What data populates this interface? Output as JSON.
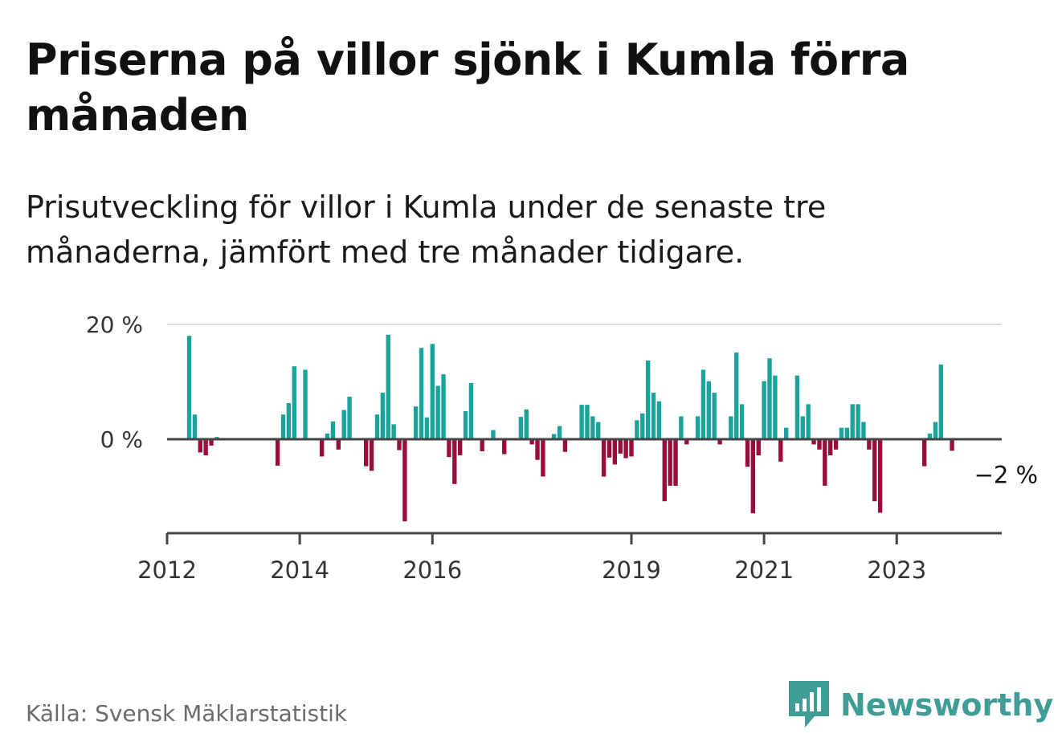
{
  "header": {
    "title": "Priserna på villor sjönk i Kumla förra månaden",
    "subtitle": "Prisutveckling för villor i Kumla under de senaste tre månaderna, jämfört med tre månader tidigare."
  },
  "footer": {
    "source": "Källa: Svensk Mäklarstatistik",
    "brand": "Newsworthy",
    "brand_icon": "bar-chart-badge-icon"
  },
  "colors": {
    "positive": "#1aa398",
    "negative": "#990c3e",
    "axis": "#444444",
    "grid": "#dddddd",
    "brand": "#3f9d95"
  },
  "chart_data": {
    "type": "bar",
    "x_start": "2012-01",
    "x_end": "2024-08",
    "xticks": [
      {
        "label": "2012",
        "date": "2012-01"
      },
      {
        "label": "2014",
        "date": "2014-01"
      },
      {
        "label": "2016",
        "date": "2016-01"
      },
      {
        "label": "2019",
        "date": "2019-01"
      },
      {
        "label": "2021",
        "date": "2021-01"
      },
      {
        "label": "2023",
        "date": "2023-01"
      }
    ],
    "yticks": [
      {
        "value": 0,
        "label": "0 %"
      },
      {
        "value": 20,
        "label": "20 %"
      }
    ],
    "ylim": [
      -16,
      20
    ],
    "grid": true,
    "annotation": {
      "label": "−2 %",
      "date": "2024-03",
      "value": -2
    },
    "series": [
      {
        "points": [
          {
            "date": "2012-05",
            "value": 18
          },
          {
            "date": "2012-06",
            "value": 4.3
          },
          {
            "date": "2012-07",
            "value": -2.3
          },
          {
            "date": "2012-08",
            "value": -2.8
          },
          {
            "date": "2012-09",
            "value": -1.1
          },
          {
            "date": "2012-10",
            "value": 0.4
          },
          {
            "date": "2013-09",
            "value": -4.6
          },
          {
            "date": "2013-10",
            "value": 4.3
          },
          {
            "date": "2013-11",
            "value": 6.3
          },
          {
            "date": "2013-12",
            "value": 12.7
          },
          {
            "date": "2014-02",
            "value": 12.1
          },
          {
            "date": "2014-05",
            "value": -3
          },
          {
            "date": "2014-06",
            "value": 1
          },
          {
            "date": "2014-07",
            "value": 3.1
          },
          {
            "date": "2014-08",
            "value": -1.8
          },
          {
            "date": "2014-09",
            "value": 5.1
          },
          {
            "date": "2014-10",
            "value": 7.4
          },
          {
            "date": "2015-01",
            "value": -4.7
          },
          {
            "date": "2015-02",
            "value": -5.5
          },
          {
            "date": "2015-03",
            "value": 4.3
          },
          {
            "date": "2015-04",
            "value": 8.1
          },
          {
            "date": "2015-05",
            "value": 18.2
          },
          {
            "date": "2015-06",
            "value": 2.6
          },
          {
            "date": "2015-07",
            "value": -1.9
          },
          {
            "date": "2015-08",
            "value": -14.3
          },
          {
            "date": "2015-10",
            "value": 5.7
          },
          {
            "date": "2015-11",
            "value": 15.9
          },
          {
            "date": "2015-12",
            "value": 3.8
          },
          {
            "date": "2016-01",
            "value": 16.6
          },
          {
            "date": "2016-02",
            "value": 9.3
          },
          {
            "date": "2016-03",
            "value": 11.3
          },
          {
            "date": "2016-04",
            "value": -3.1
          },
          {
            "date": "2016-05",
            "value": -7.8
          },
          {
            "date": "2016-06",
            "value": -2.8
          },
          {
            "date": "2016-07",
            "value": 4.9
          },
          {
            "date": "2016-08",
            "value": 9.8
          },
          {
            "date": "2016-10",
            "value": -2.1
          },
          {
            "date": "2016-12",
            "value": 1.6
          },
          {
            "date": "2017-02",
            "value": -2.6
          },
          {
            "date": "2017-05",
            "value": 3.9
          },
          {
            "date": "2017-06",
            "value": 5.2
          },
          {
            "date": "2017-07",
            "value": -0.9
          },
          {
            "date": "2017-08",
            "value": -3.6
          },
          {
            "date": "2017-09",
            "value": -6.5
          },
          {
            "date": "2017-11",
            "value": 0.9
          },
          {
            "date": "2017-12",
            "value": 2.3
          },
          {
            "date": "2018-01",
            "value": -2.2
          },
          {
            "date": "2018-04",
            "value": 6
          },
          {
            "date": "2018-05",
            "value": 6
          },
          {
            "date": "2018-06",
            "value": 4
          },
          {
            "date": "2018-07",
            "value": 3
          },
          {
            "date": "2018-08",
            "value": -6.5
          },
          {
            "date": "2018-09",
            "value": -3.2
          },
          {
            "date": "2018-10",
            "value": -4.4
          },
          {
            "date": "2018-11",
            "value": -2.5
          },
          {
            "date": "2018-12",
            "value": -3.3
          },
          {
            "date": "2019-01",
            "value": -3
          },
          {
            "date": "2019-02",
            "value": 3.3
          },
          {
            "date": "2019-03",
            "value": 4.5
          },
          {
            "date": "2019-04",
            "value": 13.7
          },
          {
            "date": "2019-05",
            "value": 8.1
          },
          {
            "date": "2019-06",
            "value": 6.6
          },
          {
            "date": "2019-07",
            "value": -10.8
          },
          {
            "date": "2019-08",
            "value": -8.1
          },
          {
            "date": "2019-09",
            "value": -8.1
          },
          {
            "date": "2019-10",
            "value": 4
          },
          {
            "date": "2019-11",
            "value": -0.9
          },
          {
            "date": "2020-01",
            "value": 4
          },
          {
            "date": "2020-02",
            "value": 12.1
          },
          {
            "date": "2020-03",
            "value": 10.1
          },
          {
            "date": "2020-04",
            "value": 8.1
          },
          {
            "date": "2020-05",
            "value": -0.9
          },
          {
            "date": "2020-07",
            "value": 4
          },
          {
            "date": "2020-08",
            "value": 15.1
          },
          {
            "date": "2020-09",
            "value": 6.1
          },
          {
            "date": "2020-10",
            "value": -4.8
          },
          {
            "date": "2020-11",
            "value": -12.9
          },
          {
            "date": "2020-12",
            "value": -2.8
          },
          {
            "date": "2021-01",
            "value": 10.1
          },
          {
            "date": "2021-02",
            "value": 14.1
          },
          {
            "date": "2021-03",
            "value": 11.1
          },
          {
            "date": "2021-04",
            "value": -3.9
          },
          {
            "date": "2021-05",
            "value": 2
          },
          {
            "date": "2021-07",
            "value": 11.1
          },
          {
            "date": "2021-08",
            "value": 4
          },
          {
            "date": "2021-09",
            "value": 6.1
          },
          {
            "date": "2021-10",
            "value": -0.9
          },
          {
            "date": "2021-11",
            "value": -1.8
          },
          {
            "date": "2021-12",
            "value": -8.1
          },
          {
            "date": "2022-01",
            "value": -2.8
          },
          {
            "date": "2022-02",
            "value": -1.8
          },
          {
            "date": "2022-03",
            "value": 2
          },
          {
            "date": "2022-04",
            "value": 2
          },
          {
            "date": "2022-05",
            "value": 6.1
          },
          {
            "date": "2022-06",
            "value": 6.1
          },
          {
            "date": "2022-07",
            "value": 3
          },
          {
            "date": "2022-08",
            "value": -1.8
          },
          {
            "date": "2022-09",
            "value": -10.8
          },
          {
            "date": "2022-10",
            "value": -12.8
          },
          {
            "date": "2023-06",
            "value": -4.7
          },
          {
            "date": "2023-07",
            "value": 1
          },
          {
            "date": "2023-08",
            "value": 3
          },
          {
            "date": "2023-09",
            "value": 13
          },
          {
            "date": "2023-11",
            "value": -2
          }
        ]
      }
    ]
  }
}
